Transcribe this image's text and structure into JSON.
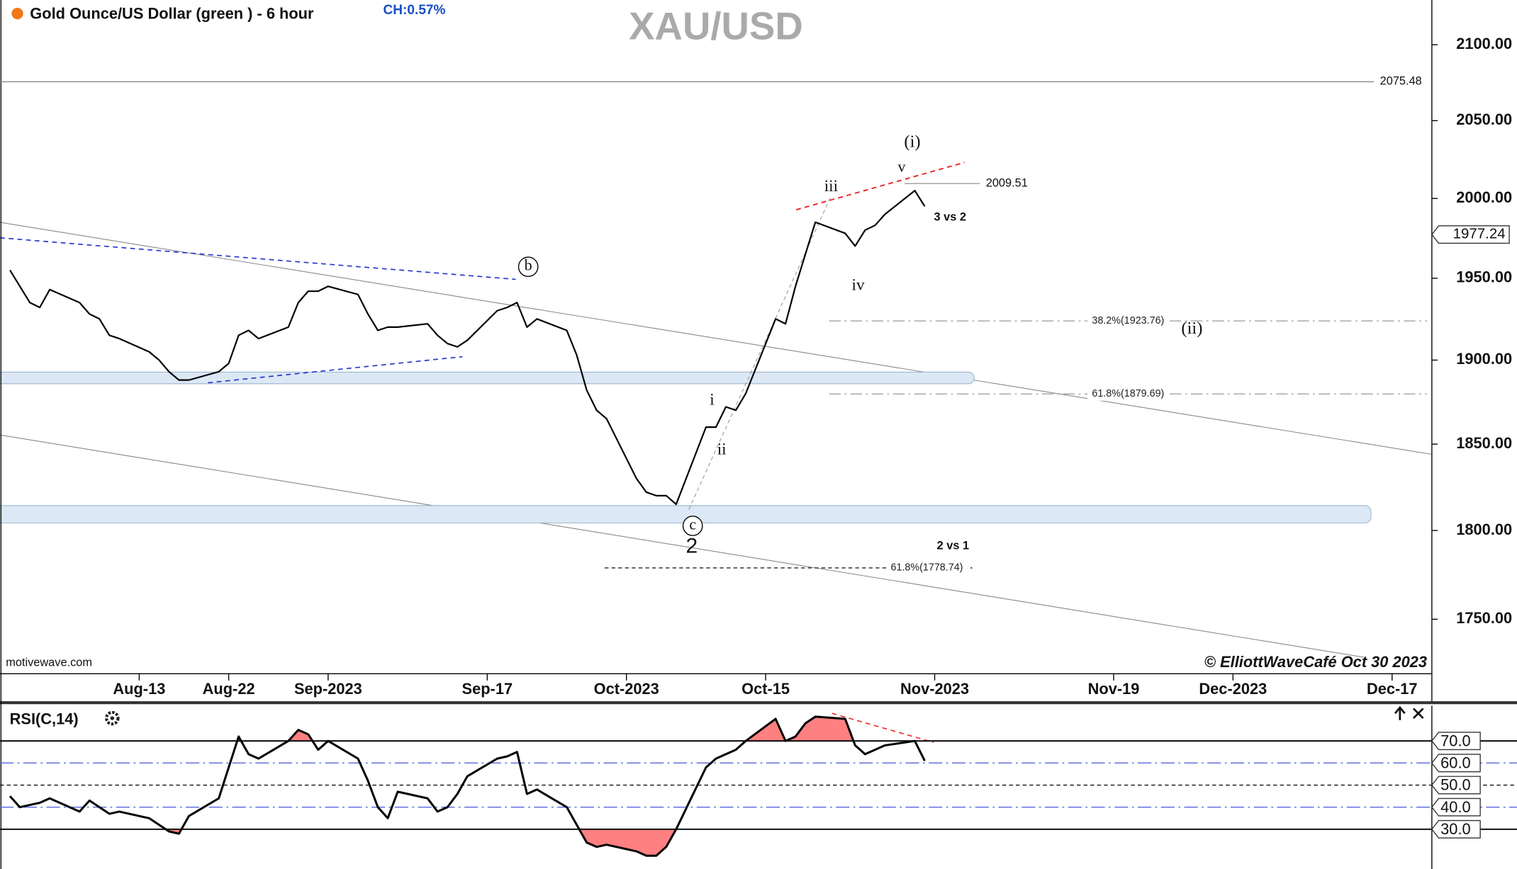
{
  "chart_data": [
    {
      "type": "line",
      "title": "Gold Ounce/US Dollar (green ) - 6 hour",
      "change_label": "CH:0.57%",
      "symbol": "XAU/USD",
      "x": [
        "2023-07-31",
        "2023-08-01",
        "2023-08-02",
        "2023-08-03",
        "2023-08-04",
        "2023-08-07",
        "2023-08-08",
        "2023-08-09",
        "2023-08-10",
        "2023-08-11",
        "2023-08-14",
        "2023-08-15",
        "2023-08-16",
        "2023-08-17",
        "2023-08-18",
        "2023-08-21",
        "2023-08-22",
        "2023-08-23",
        "2023-08-24",
        "2023-08-25",
        "2023-08-28",
        "2023-08-29",
        "2023-08-30",
        "2023-08-31",
        "2023-09-01",
        "2023-09-04",
        "2023-09-05",
        "2023-09-06",
        "2023-09-07",
        "2023-09-08",
        "2023-09-11",
        "2023-09-12",
        "2023-09-13",
        "2023-09-14",
        "2023-09-15",
        "2023-09-18",
        "2023-09-19",
        "2023-09-20",
        "2023-09-21",
        "2023-09-22",
        "2023-09-25",
        "2023-09-26",
        "2023-09-27",
        "2023-09-28",
        "2023-09-29",
        "2023-10-02",
        "2023-10-03",
        "2023-10-04",
        "2023-10-05",
        "2023-10-06",
        "2023-10-09",
        "2023-10-10",
        "2023-10-11",
        "2023-10-12",
        "2023-10-13",
        "2023-10-16",
        "2023-10-17",
        "2023-10-18",
        "2023-10-19",
        "2023-10-20",
        "2023-10-23",
        "2023-10-24",
        "2023-10-25",
        "2023-10-26",
        "2023-10-27",
        "2023-10-30",
        "2023-10-31"
      ],
      "values": [
        1955,
        1945,
        1935,
        1932,
        1943,
        1935,
        1928,
        1925,
        1915,
        1913,
        1905,
        1900,
        1893,
        1888,
        1888,
        1893,
        1898,
        1915,
        1918,
        1913,
        1920,
        1935,
        1942,
        1942,
        1945,
        1940,
        1928,
        1918,
        1920,
        1920,
        1922,
        1915,
        1910,
        1908,
        1912,
        1930,
        1932,
        1935,
        1920,
        1925,
        1918,
        1903,
        1882,
        1870,
        1865,
        1830,
        1822,
        1820,
        1820,
        1815,
        1860,
        1860,
        1872,
        1870,
        1880,
        1925,
        1922,
        1945,
        1965,
        1985,
        1978,
        1970,
        1980,
        1983,
        1990,
        2005,
        1995
      ],
      "color": "#000000",
      "log_scale": true,
      "ylim": [
        1720,
        2130
      ],
      "yticks": [
        {
          "value": 1750,
          "label": "1750.00"
        },
        {
          "value": 1800,
          "label": "1800.00"
        },
        {
          "value": 1850,
          "label": "1850.00"
        },
        {
          "value": 1900,
          "label": "1900.00"
        },
        {
          "value": 1950,
          "label": "1950.00"
        },
        {
          "value": 2000,
          "label": "2000.00"
        },
        {
          "value": 2050,
          "label": "2050.00"
        },
        {
          "value": 2100,
          "label": "2100.00"
        }
      ],
      "xlim": [
        "2023-07-30",
        "2023-12-21"
      ],
      "xticks": [
        {
          "value": "2023-08-13",
          "label": "Aug-13"
        },
        {
          "value": "2023-08-22",
          "label": "Aug-22"
        },
        {
          "value": "2023-09-01",
          "label": "Sep-2023"
        },
        {
          "value": "2023-09-17",
          "label": "Sep-17"
        },
        {
          "value": "2023-10-01",
          "label": "Oct-2023"
        },
        {
          "value": "2023-10-15",
          "label": "Oct-15"
        },
        {
          "value": "2023-11-01",
          "label": "Nov-2023"
        },
        {
          "value": "2023-11-19",
          "label": "Nov-19"
        },
        {
          "value": "2023-12-01",
          "label": "Dec-2023"
        },
        {
          "value": "2023-12-17",
          "label": "Dec-17"
        }
      ],
      "last_price": 1977.24,
      "levels": [
        2075.48,
        2009.51
      ],
      "fib_levels": [
        {
          "value": 1923.76,
          "label": "38.2%(1923.76)"
        },
        {
          "value": 1879.69,
          "label": "61.8%(1879.69)"
        },
        {
          "value": 1778.74,
          "label": "61.8%(1778.74)"
        }
      ],
      "annotations": [
        "(i)",
        "v",
        "iii",
        "iv",
        "(ii)",
        "i",
        "ii",
        "b",
        "c",
        "2",
        "3 vs 2",
        "2 vs 1"
      ],
      "source": "motivewave.com",
      "credit": "© ElliottWaveCafé Oct 30 2023"
    },
    {
      "type": "line",
      "title": "RSI(C,14)",
      "x": [
        "2023-07-31",
        "2023-08-01",
        "2023-08-02",
        "2023-08-03",
        "2023-08-04",
        "2023-08-07",
        "2023-08-08",
        "2023-08-09",
        "2023-08-10",
        "2023-08-11",
        "2023-08-14",
        "2023-08-15",
        "2023-08-16",
        "2023-08-17",
        "2023-08-18",
        "2023-08-21",
        "2023-08-22",
        "2023-08-23",
        "2023-08-24",
        "2023-08-25",
        "2023-08-28",
        "2023-08-29",
        "2023-08-30",
        "2023-08-31",
        "2023-09-01",
        "2023-09-04",
        "2023-09-05",
        "2023-09-06",
        "2023-09-07",
        "2023-09-08",
        "2023-09-11",
        "2023-09-12",
        "2023-09-13",
        "2023-09-14",
        "2023-09-15",
        "2023-09-18",
        "2023-09-19",
        "2023-09-20",
        "2023-09-21",
        "2023-09-22",
        "2023-09-25",
        "2023-09-26",
        "2023-09-27",
        "2023-09-28",
        "2023-09-29",
        "2023-10-02",
        "2023-10-03",
        "2023-10-04",
        "2023-10-05",
        "2023-10-06",
        "2023-10-09",
        "2023-10-10",
        "2023-10-11",
        "2023-10-12",
        "2023-10-13",
        "2023-10-16",
        "2023-10-17",
        "2023-10-18",
        "2023-10-19",
        "2023-10-20",
        "2023-10-23",
        "2023-10-24",
        "2023-10-25",
        "2023-10-26",
        "2023-10-27",
        "2023-10-30",
        "2023-10-31"
      ],
      "values": [
        45,
        40,
        41,
        42,
        44,
        38,
        43,
        40,
        37,
        38,
        35,
        32,
        29,
        28,
        36,
        44,
        58,
        72,
        64,
        62,
        70,
        75,
        73,
        66,
        70,
        62,
        52,
        40,
        35,
        47,
        44,
        38,
        40,
        46,
        54,
        62,
        63,
        65,
        46,
        48,
        40,
        32,
        24,
        22,
        23,
        20,
        18,
        18,
        22,
        30,
        58,
        62,
        64,
        66,
        70,
        80,
        70,
        72,
        78,
        81,
        80,
        68,
        64,
        66,
        68,
        70,
        61
      ],
      "color": "#000000",
      "fill_color": "#ff8080",
      "xlim": [
        "2023-07-30",
        "2023-12-21"
      ],
      "ylim": [
        12,
        86
      ],
      "yticks": [
        {
          "value": 70,
          "label": "70.0"
        },
        {
          "value": 60,
          "label": "60.0"
        },
        {
          "value": 50,
          "label": "50.0"
        },
        {
          "value": 40,
          "label": "40.0"
        },
        {
          "value": 30,
          "label": "30.0"
        }
      ]
    }
  ]
}
